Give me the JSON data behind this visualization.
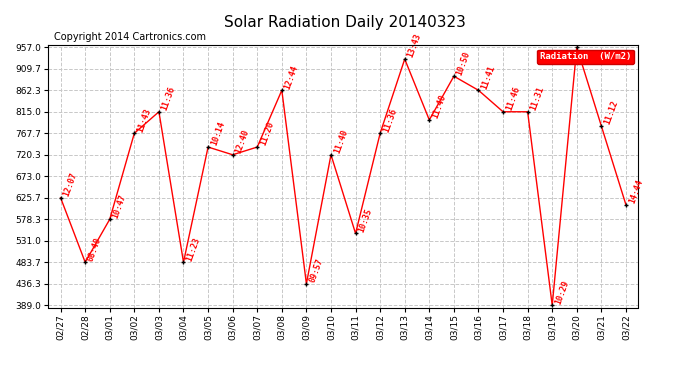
{
  "title": "Solar Radiation Daily 20140323",
  "copyright": "Copyright 2014 Cartronics.com",
  "legend_label": "Radiation  (W/m2)",
  "dates": [
    "02/27",
    "02/28",
    "03/01",
    "03/02",
    "03/03",
    "03/04",
    "03/05",
    "03/06",
    "03/07",
    "03/08",
    "03/09",
    "03/10",
    "03/11",
    "03/12",
    "03/13",
    "03/14",
    "03/15",
    "03/16",
    "03/17",
    "03/18",
    "03/19",
    "03/20",
    "03/21",
    "03/22"
  ],
  "values": [
    625.7,
    483.7,
    578.3,
    767.7,
    815.0,
    483.7,
    737.3,
    720.3,
    737.3,
    862.3,
    436.3,
    720.3,
    547.0,
    767.7,
    931.0,
    797.0,
    893.3,
    862.3,
    815.0,
    815.0,
    389.0,
    957.0,
    783.5,
    610.0
  ],
  "time_labels": [
    "12:07",
    "08:40",
    "10:47",
    "11:43",
    "11:36",
    "11:23",
    "10:14",
    "12:40",
    "11:20",
    "12:44",
    "09:57",
    "11:40",
    "10:35",
    "11:36",
    "13:43",
    "11:40",
    "10:50",
    "11:41",
    "11:46",
    "11:31",
    "10:29",
    "",
    "11:12",
    "14:44"
  ],
  "ylim": [
    389.0,
    957.0
  ],
  "yticks": [
    389.0,
    436.3,
    483.7,
    531.0,
    578.3,
    625.7,
    673.0,
    720.3,
    767.7,
    815.0,
    862.3,
    909.7,
    957.0
  ],
  "line_color": "#ff0000",
  "marker_color": "#000000",
  "label_color": "#ff0000",
  "title_color": "#000000",
  "copyright_color": "#000000",
  "background_color": "#ffffff",
  "grid_color": "#c8c8c8",
  "legend_bg": "#ff0000",
  "legend_fg": "#ffffff",
  "title_fontsize": 11,
  "tick_fontsize": 6.5,
  "label_fontsize": 6,
  "copyright_fontsize": 7
}
